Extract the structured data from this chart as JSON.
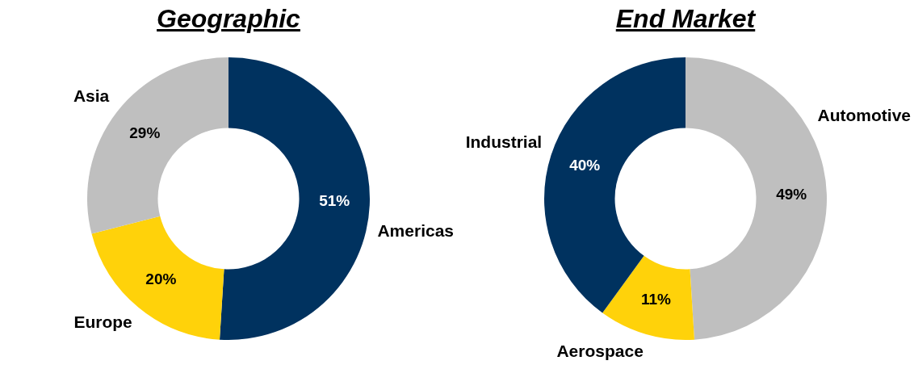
{
  "chart_data": [
    {
      "type": "donut",
      "title": "Geographic",
      "categories": [
        "Americas",
        "Europe",
        "Asia"
      ],
      "values": [
        51,
        20,
        29
      ],
      "colors": [
        "#00325f",
        "#ffd20a",
        "#bfbfbf"
      ],
      "value_labels": [
        "51%",
        "20%",
        "29%"
      ],
      "legend": false
    },
    {
      "type": "donut",
      "title": "End Market",
      "categories": [
        "Automotive",
        "Aerospace",
        "Industrial"
      ],
      "values": [
        49,
        11,
        40
      ],
      "colors": [
        "#bfbfbf",
        "#ffd20a",
        "#00325f"
      ],
      "value_labels": [
        "49%",
        "11%",
        "40%"
      ],
      "legend": false
    }
  ]
}
